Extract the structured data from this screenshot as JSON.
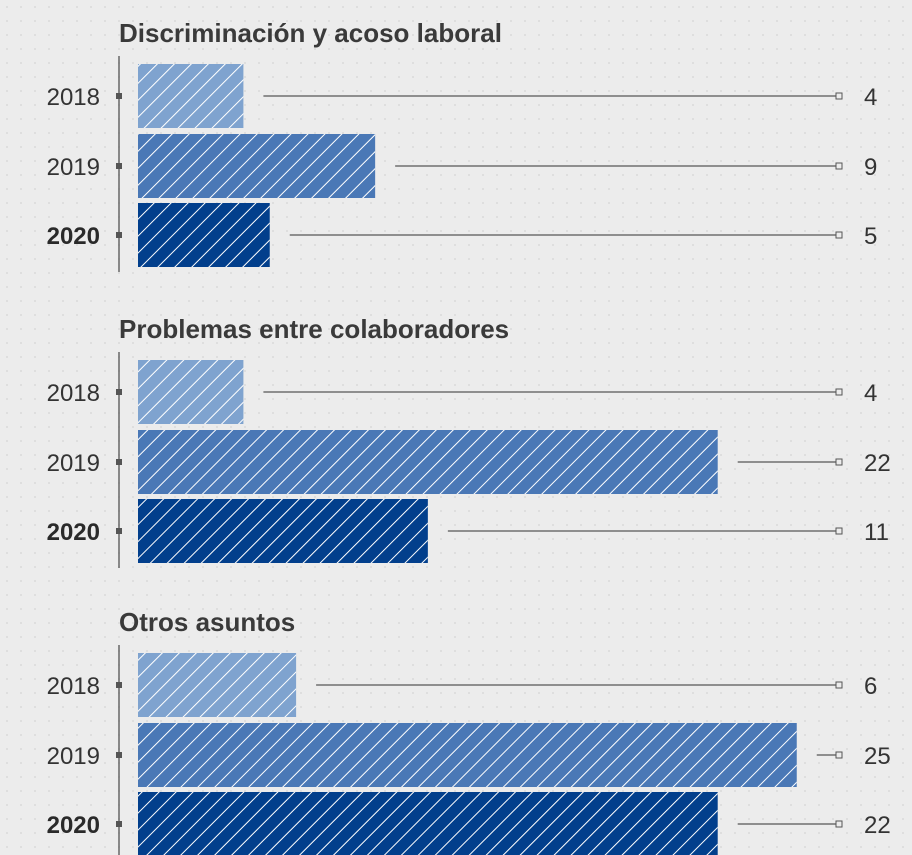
{
  "chart_data": [
    {
      "type": "bar",
      "orientation": "horizontal",
      "title": "Discriminación y acoso laboral",
      "categories": [
        "2018",
        "2019",
        "2020"
      ],
      "values": [
        4,
        9,
        5
      ],
      "highlight_category": "2020",
      "xlim": [
        0,
        25
      ]
    },
    {
      "type": "bar",
      "orientation": "horizontal",
      "title": "Problemas entre colaboradores",
      "categories": [
        "2018",
        "2019",
        "2020"
      ],
      "values": [
        4,
        22,
        11
      ],
      "highlight_category": "2020",
      "xlim": [
        0,
        25
      ]
    },
    {
      "type": "bar",
      "orientation": "horizontal",
      "title": "Otros asuntos",
      "categories": [
        "2018",
        "2019",
        "2020"
      ],
      "values": [
        6,
        25,
        22
      ],
      "highlight_category": "2020",
      "xlim": [
        0,
        25
      ]
    }
  ],
  "colors": {
    "2018": "#7fa3cf",
    "2019": "#4a78b6",
    "2020": "#023f8c",
    "axis": "#666666",
    "leader": "#555555"
  }
}
